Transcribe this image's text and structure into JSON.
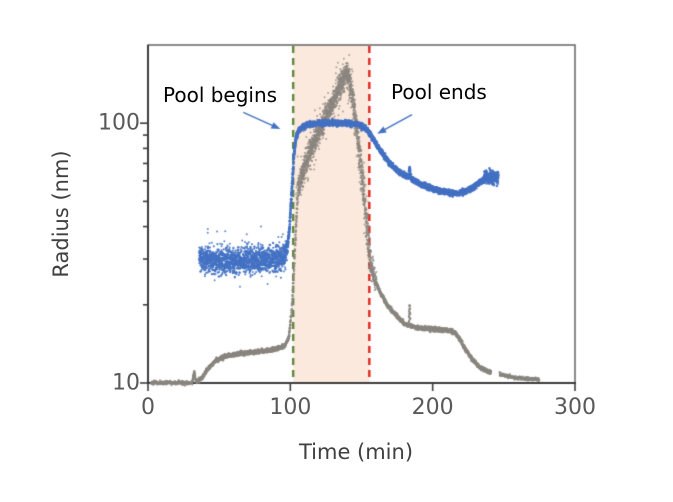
{
  "chart_data": {
    "type": "scatter",
    "title": "",
    "xlabel": "Time (min)",
    "ylabel": "Radius (nm)",
    "x_axis": {
      "min": 0,
      "max": 300,
      "ticks": [
        0,
        100,
        200,
        300
      ],
      "tick_labels": [
        "0",
        "100",
        "200",
        "300"
      ],
      "grid": false
    },
    "y_axis": {
      "scale": "log",
      "min": 10,
      "max": 200,
      "major_ticks": [
        10,
        100
      ],
      "major_tick_labels": [
        "10",
        "100"
      ],
      "minor_ticks": [
        20,
        30,
        40,
        50,
        60,
        70,
        80,
        90
      ],
      "grid": false
    },
    "pool_region": {
      "start_min": 102,
      "end_min": 155.5,
      "fill_color": "#fbe9dd",
      "start_line": {
        "color": "#5f8a3d",
        "style": "dashed"
      },
      "end_line": {
        "color": "#e0261e",
        "style": "dashed"
      }
    },
    "annotations": [
      {
        "text": "Pool begins",
        "color": "#000000",
        "arrow_color": "#4472c4",
        "arrow": {
          "from": {
            "t": 67,
            "r": 110
          },
          "to": {
            "t": 93,
            "r": 95
          }
        }
      },
      {
        "text": "Pool ends",
        "color": "#000000",
        "arrow_color": "#4472c4",
        "arrow": {
          "from": {
            "t": 185.5,
            "r": 108
          },
          "to": {
            "t": 161,
            "r": 91
          }
        }
      }
    ],
    "series": [
      {
        "name": "gray-radius-trace",
        "color": "#8b8680",
        "style": "scatter",
        "segments": [
          {
            "anchors": [
              [
                2,
                10.05
              ],
              [
                12,
                10.0
              ],
              [
                22,
                10.05
              ],
              [
                30,
                10.0
              ]
            ],
            "noise": 0.004,
            "x_noise": 0.1,
            "density": 10,
            "size": 1.0,
            "alpha": 0.85
          },
          {
            "anchors": [
              [
                31,
                10.0
              ],
              [
                32.5,
                11.1
              ],
              [
                33.5,
                10.2
              ]
            ],
            "noise": 0.004,
            "x_noise": 0,
            "density": 30,
            "size": 1.0,
            "alpha": 0.9
          },
          {
            "anchors": [
              [
                34,
                10.1
              ],
              [
                38,
                10.5
              ],
              [
                43,
                11.5
              ],
              [
                48,
                12.2
              ],
              [
                55,
                12.7
              ],
              [
                65,
                13.0
              ],
              [
                78,
                13.2
              ],
              [
                90,
                13.5
              ],
              [
                96,
                13.9
              ],
              [
                99,
                15
              ],
              [
                101,
                19
              ],
              [
                102.5,
                27
              ],
              [
                104,
                40
              ],
              [
                105,
                52
              ]
            ],
            "noise": 0.004,
            "x_noise": 0.1,
            "density": 14,
            "size": 1.2,
            "alpha": 0.9
          },
          {
            "anchors": [
              [
                105,
                55
              ],
              [
                109,
                65
              ],
              [
                113,
                76
              ],
              [
                118,
                88
              ],
              [
                123,
                100
              ],
              [
                128,
                115
              ],
              [
                132,
                128
              ],
              [
                135,
                140
              ],
              [
                138,
                152
              ],
              [
                139.5,
                158
              ],
              [
                141,
                150
              ],
              [
                142.5,
                138
              ],
              [
                144,
                120
              ],
              [
                146,
                100
              ],
              [
                148,
                82
              ],
              [
                150,
                65
              ],
              [
                152,
                50
              ],
              [
                154,
                38
              ],
              [
                156,
                30
              ],
              [
                158,
                26.5
              ],
              [
                160,
                24.5
              ]
            ],
            "noise": 0.02,
            "x_noise": 0.6,
            "density": 30,
            "size": 1.0,
            "alpha": 0.8
          },
          {
            "anchors": [
              [
                106,
                60
              ],
              [
                120,
                95
              ],
              [
                135,
                140
              ],
              [
                139,
                155
              ],
              [
                143,
                130
              ],
              [
                149,
                75
              ],
              [
                154,
                40
              ]
            ],
            "noise": 0.045,
            "x_noise": 0.8,
            "density": 6,
            "size": 1.0,
            "alpha": 0.7
          },
          {
            "anchors": [
              [
                160,
                24.5
              ],
              [
                164,
                21.8
              ],
              [
                168,
                20
              ],
              [
                172,
                18.8
              ],
              [
                176,
                17.8
              ],
              [
                180,
                17
              ],
              [
                183.2,
                16.7
              ],
              [
                183.8,
                20
              ],
              [
                184.4,
                16.6
              ],
              [
                188,
                16.4
              ],
              [
                194,
                16.2
              ],
              [
                200,
                16.1
              ],
              [
                207,
                16.0
              ],
              [
                213,
                15.9
              ],
              [
                216,
                15.6
              ],
              [
                219,
                14.8
              ],
              [
                222,
                13.8
              ],
              [
                225,
                13.0
              ],
              [
                228,
                12.3
              ],
              [
                231,
                11.8
              ],
              [
                234,
                11.4
              ],
              [
                237,
                11.2
              ],
              [
                239,
                11.05
              ],
              [
                241,
                11.0
              ]
            ],
            "noise": 0.004,
            "x_noise": 0.1,
            "density": 14,
            "size": 1.2,
            "alpha": 0.9
          },
          {
            "anchors": [
              [
                247,
                10.85
              ],
              [
                252,
                10.65
              ],
              [
                258,
                10.5
              ],
              [
                265,
                10.4
              ],
              [
                271,
                10.33
              ],
              [
                275,
                10.3
              ]
            ],
            "noise": 0.003,
            "x_noise": 0.1,
            "density": 10,
            "size": 1.1,
            "alpha": 0.85
          }
        ]
      },
      {
        "name": "blue-radius-trace",
        "color": "#4472c4",
        "style": "scatter",
        "segments": [
          {
            "anchors": [
              [
                36,
                30
              ],
              [
                50,
                29.5
              ],
              [
                70,
                29.5
              ],
              [
                90,
                30
              ],
              [
                96,
                30.5
              ],
              [
                98,
                33
              ]
            ],
            "noise": 0.024,
            "x_noise": 0.3,
            "density": 25,
            "size": 1.1,
            "alpha": 0.9
          },
          {
            "anchors": [
              [
                37,
                31
              ],
              [
                97,
                31
              ]
            ],
            "noise": 0.055,
            "x_noise": 0.3,
            "density": 1.5,
            "size": 1.0,
            "alpha": 0.85
          },
          {
            "anchors": [
              [
                98,
                33
              ],
              [
                99.5,
                40
              ],
              [
                101,
                55
              ],
              [
                102.5,
                75
              ],
              [
                104,
                88
              ],
              [
                106,
                94
              ],
              [
                109,
                97
              ],
              [
                113,
                99
              ],
              [
                120,
                100
              ],
              [
                133,
                100
              ],
              [
                142,
                100
              ],
              [
                147,
                99
              ],
              [
                151,
                97
              ],
              [
                154,
                94
              ],
              [
                157,
                89
              ],
              [
                161,
                82
              ],
              [
                165,
                76
              ],
              [
                170,
                70
              ],
              [
                175,
                66
              ],
              [
                180,
                63
              ],
              [
                183.2,
                62
              ],
              [
                183.8,
                67
              ],
              [
                184.4,
                62
              ],
              [
                186,
                60.5
              ],
              [
                192,
                58
              ],
              [
                198,
                56.5
              ],
              [
                205,
                55
              ],
              [
                212,
                54
              ],
              [
                218,
                53.8
              ],
              [
                224,
                55
              ],
              [
                229,
                57
              ],
              [
                233,
                59
              ],
              [
                236,
                60.5
              ]
            ],
            "noise": 0.005,
            "x_noise": 0,
            "density": 18,
            "size": 1.4,
            "alpha": 0.95
          },
          {
            "anchors": [
              [
                236,
                61
              ],
              [
                237.5,
                63
              ],
              [
                239,
                60.5
              ],
              [
                240.5,
                63.5
              ],
              [
                242,
                61
              ],
              [
                243.5,
                62.5
              ],
              [
                245,
                61.5
              ],
              [
                246,
                62
              ]
            ],
            "noise": 0.012,
            "x_noise": 0.25,
            "density": 30,
            "size": 1.3,
            "alpha": 0.9
          }
        ]
      }
    ],
    "style": {
      "plot_border_color": "#595959",
      "axis_line_color": "#3d3d3d",
      "tick_color": "#3d3d3d",
      "tick_label_color": "#595959",
      "axis_title_color": "#404040",
      "annotation_color": "#000000",
      "background_color": "#ffffff"
    }
  }
}
